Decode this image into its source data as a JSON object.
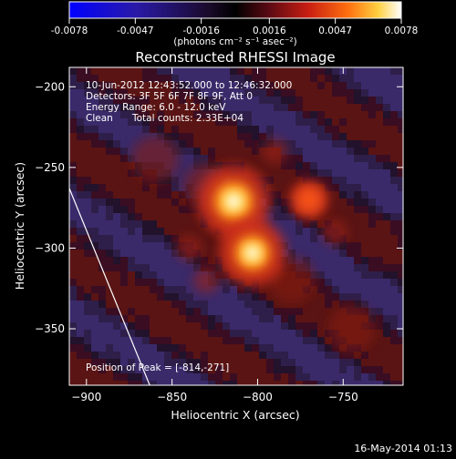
{
  "colorbar": {
    "ticks": [
      "-0.0078",
      "-0.0047",
      "-0.0016",
      "0.0016",
      "0.0047",
      "0.0078"
    ],
    "tick_values": [
      -0.0078,
      -0.0047,
      -0.0016,
      0.0016,
      0.0047,
      0.0078
    ],
    "range": [
      -0.0078,
      0.0078
    ],
    "units_text": "(photons cm⁻² s⁻¹ asec⁻²)"
  },
  "image_text": {
    "time_range": "10-Jun-2012 12:43:52.000 to 12:46:32.000",
    "detectors": "Detectors: 3F 5F 6F 7F 8F 9F, Att 0",
    "energy": "Energy Range: 6.0 - 12.0 keV",
    "clean": "Clean",
    "total_counts": "Total counts: 2.33E+04",
    "peak": "Position of Peak = [-814,-271]"
  },
  "footer": {
    "timestamp": "16-May-2014 01:13"
  },
  "chart_data": {
    "type": "heatmap",
    "title": "Reconstructed RHESSI Image",
    "xlabel": "Heliocentric X (arcsec)",
    "ylabel": "Heliocentric Y (arcsec)",
    "xlim": [
      -910,
      -715
    ],
    "ylim": [
      -385,
      -188
    ],
    "x_ticks": [
      -900,
      -850,
      -800,
      -750
    ],
    "y_ticks": [
      -200,
      -250,
      -300,
      -350
    ],
    "colormap": "IDL red-temperature with blue negatives",
    "colors": {
      "background": "#000000",
      "negative": "#0000ff",
      "positive_peak": "#ffffff",
      "limb_line": "#ffffff"
    },
    "sources": [
      {
        "x": -814,
        "y": -271,
        "relative_intensity": 1.0
      },
      {
        "x": -803,
        "y": -303,
        "relative_intensity": 0.9
      },
      {
        "x": -770,
        "y": -270,
        "relative_intensity": 0.45
      }
    ],
    "peak": {
      "x": -814,
      "y": -271
    },
    "limb_line": [
      {
        "x": -910,
        "y": -263
      },
      {
        "x": -863,
        "y": -385
      }
    ]
  }
}
